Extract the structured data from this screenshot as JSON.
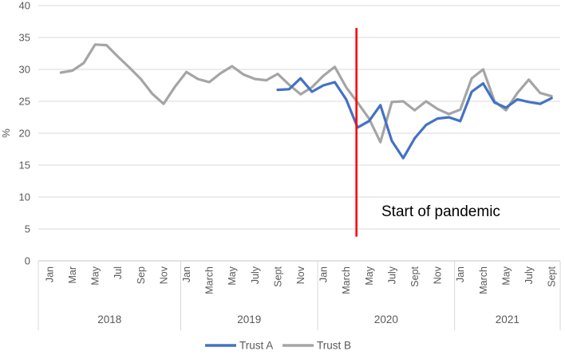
{
  "chart_data": {
    "type": "line",
    "title": "",
    "ylabel": "%",
    "ylim": [
      0,
      40
    ],
    "yticks": [
      0,
      5,
      10,
      15,
      20,
      25,
      30,
      35,
      40
    ],
    "grid": true,
    "legend_position": "bottom",
    "categories": [
      "Jan",
      "",
      "Mar",
      "",
      "May",
      "",
      "Jul",
      "",
      "Sep",
      "",
      "Nov",
      "",
      "Jan",
      "",
      "March",
      "",
      "May",
      "",
      "July",
      "",
      "Sept",
      "",
      "Nov",
      "",
      "Jan",
      "",
      "March",
      "",
      "May",
      "",
      "July",
      "",
      "Sept",
      "",
      "Nov",
      "",
      "Jan",
      "",
      "March",
      "",
      "May",
      "",
      "July",
      "",
      "Sept"
    ],
    "year_groups": [
      {
        "label": "2018",
        "start_index": 0,
        "end_index": 11
      },
      {
        "label": "2019",
        "start_index": 12,
        "end_index": 23
      },
      {
        "label": "2020",
        "start_index": 24,
        "end_index": 35
      },
      {
        "label": "2021",
        "start_index": 36,
        "end_index": 44
      }
    ],
    "series": [
      {
        "name": "Trust A",
        "color": "#4472C4",
        "values": [
          null,
          null,
          null,
          null,
          null,
          null,
          null,
          null,
          null,
          null,
          null,
          null,
          null,
          null,
          null,
          null,
          null,
          null,
          null,
          null,
          26.8,
          26.9,
          28.6,
          26.5,
          27.5,
          28.0,
          25.3,
          20.9,
          21.9,
          24.4,
          18.8,
          16.1,
          19.2,
          21.3,
          22.3,
          22.5,
          21.9,
          26.5,
          27.8,
          24.8,
          24.0,
          25.3,
          24.9,
          24.6,
          25.5
        ]
      },
      {
        "name": "Trust B",
        "color": "#A5A5A5",
        "values": [
          null,
          29.5,
          29.8,
          31.0,
          33.9,
          33.8,
          32.0,
          30.3,
          28.5,
          26.2,
          24.6,
          27.3,
          29.6,
          28.5,
          28.0,
          29.4,
          30.5,
          29.2,
          28.5,
          28.3,
          29.3,
          27.6,
          26.1,
          27.2,
          29.0,
          30.4,
          27.2,
          24.8,
          22.3,
          18.6,
          24.9,
          25.0,
          23.6,
          25.0,
          23.8,
          23.0,
          23.7,
          28.6,
          30.0,
          25.0,
          23.6,
          26.3,
          28.4,
          26.3,
          25.8
        ]
      }
    ],
    "annotation": {
      "label": "Start of pandemic",
      "color": "#FF0000",
      "x_index": 26.9,
      "marks_period": "between March and April 2020",
      "line_top_value": 36.5,
      "line_bottom_value": 3.8
    },
    "colors": {
      "axis_text": "#595959",
      "gridline": "#D9D9D9",
      "axis_line": "#C6C6C6"
    }
  }
}
